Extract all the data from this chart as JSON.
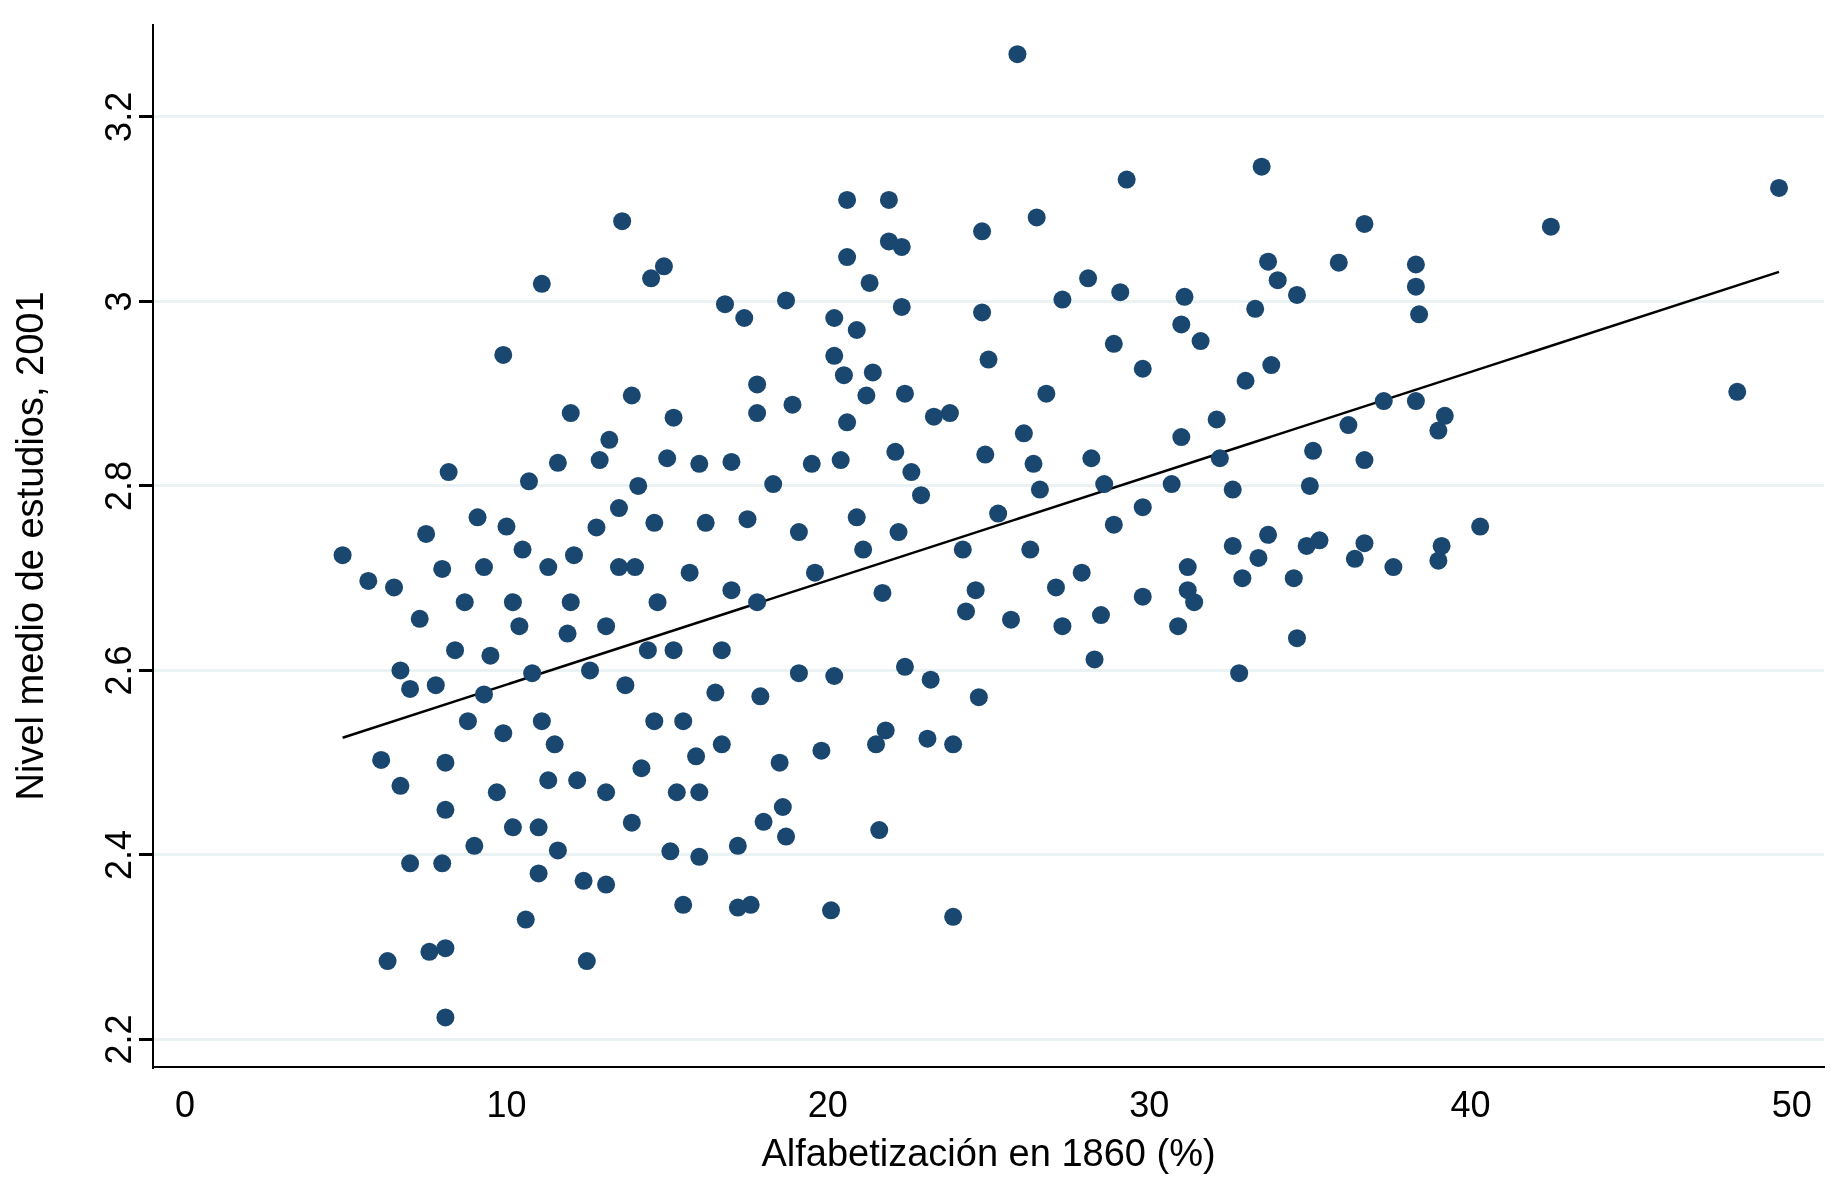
{
  "chart_data": {
    "type": "scatter",
    "xlabel": "Alfabetización en 1860 (%)",
    "ylabel": "Nivel medio de estudios, 2001",
    "xlim": [
      -1,
      51
    ],
    "xticks": [
      0,
      10,
      20,
      30,
      40,
      50
    ],
    "ylim": [
      2.17,
      3.3
    ],
    "yticks": [
      2.2,
      2.4,
      2.6,
      2.8,
      3,
      3.2
    ],
    "grid": "y",
    "legend": false,
    "marker": "circle",
    "series": [
      {
        "color": "#1a476f",
        "x": [
          4.9,
          5.7,
          6.1,
          6.3,
          6.5,
          6.7,
          6.7,
          7.0,
          7.0,
          7.3,
          7.5,
          7.6,
          7.8,
          8.0,
          8.1,
          8.1,
          8.0,
          8.1,
          8.1,
          8.2,
          8.4,
          8.7,
          9.0,
          9.1,
          9.3,
          9.5,
          9.7,
          9.9,
          9.9,
          10.0,
          10.2,
          10.2,
          10.5,
          10.6,
          10.7,
          11.0,
          11.0,
          11.1,
          11.1,
          11.3,
          11.5,
          11.6,
          11.6,
          11.9,
          12.0,
          12.1,
          12.2,
          12.4,
          12.5,
          12.6,
          12.8,
          12.9,
          13.1,
          13.1,
          13.2,
          13.5,
          13.6,
          13.7,
          13.9,
          13.9,
          14.1,
          14.2,
          14.5,
          14.6,
          14.7,
          14.9,
          15.0,
          15.1,
          15.2,
          15.2,
          15.5,
          15.5,
          15.7,
          15.9,
          16.0,
          16.2,
          16.0,
          16.5,
          16.7,
          16.8,
          17.0,
          17.0,
          17.2,
          17.2,
          17.4,
          17.5,
          17.6,
          17.8,
          17.8,
          17.9,
          18.0,
          18.3,
          18.5,
          18.6,
          18.7,
          18.7,
          18.9,
          19.1,
          19.1,
          19.5,
          19.6,
          19.8,
          20.1,
          20.2,
          20.2,
          20.2,
          20.4,
          20.5,
          20.6,
          20.6,
          20.6,
          20.9,
          20.9,
          21.1,
          21.2,
          21.3,
          21.4,
          21.5,
          21.6,
          21.7,
          21.8,
          21.9,
          21.9,
          22.1,
          22.2,
          22.3,
          22.3,
          22.4,
          22.4,
          22.6,
          22.9,
          23.1,
          23.2,
          23.3,
          23.8,
          23.9,
          23.9,
          24.2,
          24.3,
          24.6,
          24.7,
          24.8,
          24.8,
          24.9,
          25.0,
          25.3,
          25.7,
          25.9,
          26.1,
          26.3,
          26.4,
          26.5,
          26.6,
          26.8,
          27.1,
          27.3,
          27.3,
          27.9,
          28.1,
          28.2,
          28.3,
          28.5,
          28.6,
          28.9,
          28.9,
          29.1,
          29.3,
          29.8,
          29.8,
          29.8,
          30.7,
          30.9,
          31.0,
          31.0,
          31.1,
          31.2,
          31.2,
          31.4,
          31.6,
          32.1,
          32.2,
          32.6,
          32.6,
          32.8,
          32.9,
          33.0,
          33.3,
          33.4,
          33.5,
          33.7,
          33.7,
          33.8,
          34.0,
          34.5,
          34.6,
          34.6,
          34.9,
          35.0,
          35.1,
          35.3,
          35.9,
          36.2,
          36.4,
          36.7,
          36.7,
          36.7,
          37.6,
          37.3,
          38.3,
          38.3,
          38.3,
          38.4,
          39.0,
          39.0,
          39.2,
          39.1,
          40.3,
          42.5,
          48.3,
          49.6,
          10.4,
          10.8,
          12.0,
          13.1,
          14.0,
          14.4,
          14.6,
          16.0,
          16.7,
          17.8,
          9.3,
          8.8,
          11.3,
          13.5,
          15.3
        ],
        "values": [
          2.725,
          2.697,
          2.503,
          2.285,
          2.69,
          2.475,
          2.6,
          2.391,
          2.58,
          2.656,
          2.748,
          2.295,
          2.584,
          2.71,
          2.224,
          2.299,
          2.391,
          2.449,
          2.5,
          2.815,
          2.622,
          2.674,
          2.41,
          2.766,
          2.574,
          2.616,
          2.468,
          2.942,
          2.532,
          2.756,
          2.674,
          2.43,
          2.731,
          2.33,
          2.805,
          2.43,
          2.38,
          2.545,
          3.019,
          2.712,
          2.52,
          2.825,
          2.405,
          2.64,
          2.879,
          2.725,
          2.481,
          2.372,
          2.285,
          2.6,
          2.755,
          2.828,
          2.368,
          2.468,
          2.85,
          2.712,
          3.087,
          2.584,
          2.898,
          2.435,
          2.8,
          2.494,
          3.025,
          2.76,
          2.674,
          3.038,
          2.83,
          2.404,
          2.622,
          2.874,
          2.545,
          2.346,
          2.706,
          2.507,
          2.398,
          2.76,
          2.824,
          2.576,
          2.622,
          2.997,
          2.826,
          2.687,
          2.343,
          2.41,
          2.982,
          2.764,
          2.346,
          2.91,
          2.879,
          2.572,
          2.436,
          2.802,
          2.5,
          2.452,
          3.001,
          2.42,
          2.888,
          2.75,
          2.597,
          2.824,
          2.706,
          2.513,
          2.34,
          2.982,
          2.941,
          2.594,
          2.828,
          2.92,
          3.11,
          3.048,
          2.869,
          2.969,
          2.766,
          2.731,
          2.898,
          3.02,
          2.923,
          2.52,
          2.427,
          2.684,
          2.535,
          3.11,
          3.065,
          2.837,
          2.75,
          2.994,
          3.059,
          2.9,
          2.604,
          2.815,
          2.79,
          2.526,
          2.59,
          2.875,
          2.879,
          2.333,
          2.52,
          2.731,
          2.664,
          2.687,
          2.571,
          3.076,
          2.988,
          2.834,
          2.937,
          2.77,
          2.655,
          3.268,
          2.857,
          2.731,
          2.824,
          3.091,
          2.796,
          2.9,
          2.69,
          2.648,
          3.002,
          2.706,
          3.025,
          2.83,
          2.612,
          2.66,
          2.802,
          2.758,
          2.954,
          3.01,
          3.132,
          2.777,
          2.927,
          2.68,
          2.802,
          2.648,
          2.975,
          2.853,
          3.005,
          2.687,
          2.712,
          2.674,
          2.957,
          2.872,
          2.83,
          2.796,
          2.735,
          2.597,
          2.7,
          2.914,
          2.992,
          2.722,
          3.146,
          2.747,
          3.043,
          2.931,
          3.023,
          2.7,
          3.007,
          2.635,
          2.735,
          2.8,
          2.838,
          2.741,
          3.042,
          2.866,
          2.721,
          2.828,
          3.084,
          2.738,
          2.712,
          2.892,
          2.892,
          3.04,
          3.016,
          2.986,
          2.86,
          2.719,
          2.876,
          2.735,
          2.756,
          3.081,
          2.902,
          3.123,
          2.648,
          2.597,
          2.674,
          2.648,
          2.712,
          2.622,
          2.545,
          2.468,
          2.52,
          2.674,
          2.712,
          2.545,
          2.481,
          2.776,
          2.468
        ]
      },
      {
        "type": "line",
        "color": "#000000",
        "marker": "none",
        "x": [
          4.9,
          49.6
        ],
        "values": [
          2.527,
          3.032
        ]
      }
    ]
  }
}
